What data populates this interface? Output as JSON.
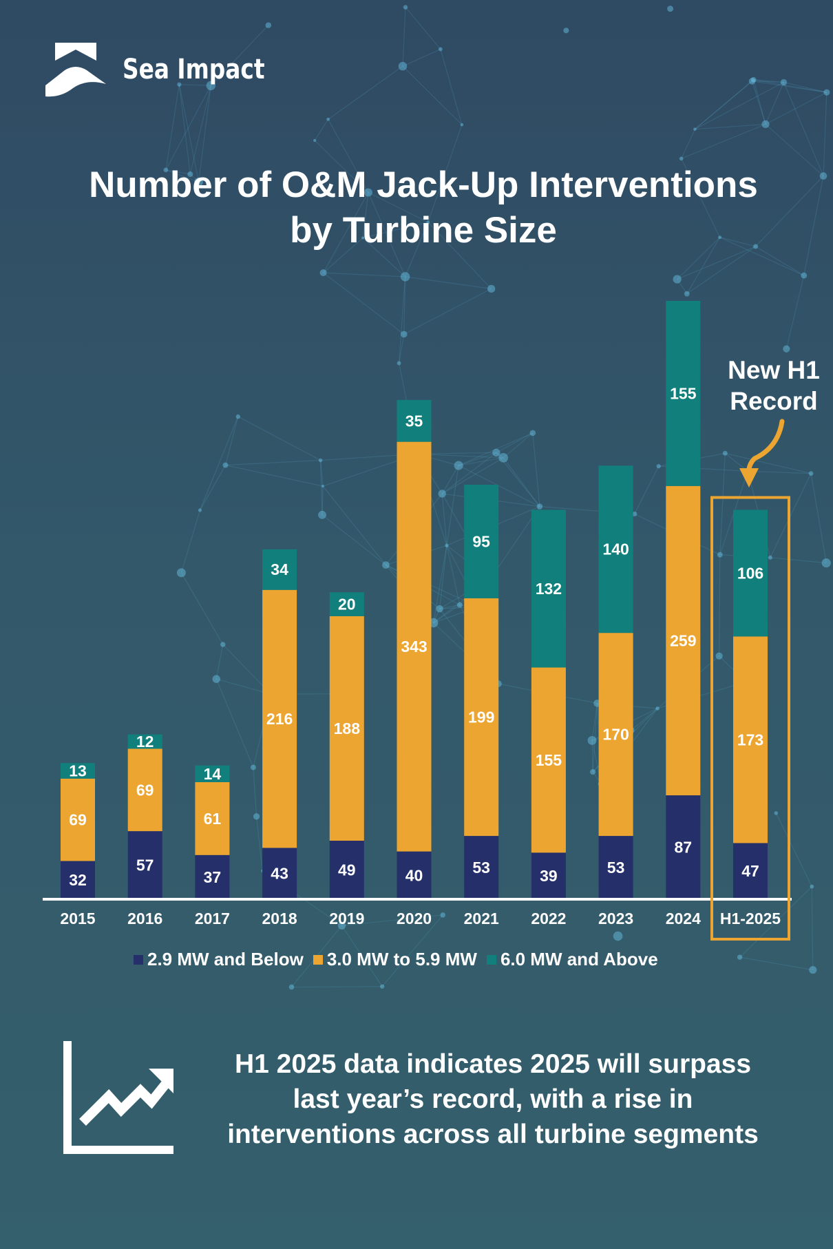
{
  "brand": {
    "name": "Sea Impact"
  },
  "colors": {
    "below_2_9": "#25306a",
    "mid_3_5_9": "#eca530",
    "above_6": "#11807c",
    "highlight": "#eca530",
    "axis": "#ffffff"
  },
  "chart_data": {
    "type": "bar",
    "stacked": true,
    "title": "Number of O&M Jack-Up Interventions by Turbine Size",
    "title_lines": [
      "Number of O&M Jack-Up Interventions",
      "by Turbine Size"
    ],
    "categories": [
      "2015",
      "2016",
      "2017",
      "2018",
      "2019",
      "2020",
      "2021",
      "2022",
      "2023",
      "2024",
      "H1-2025"
    ],
    "series": [
      {
        "name": "2.9 MW and Below",
        "values": [
          32,
          57,
          37,
          43,
          49,
          40,
          53,
          39,
          53,
          87,
          47
        ]
      },
      {
        "name": "3.0 MW to 5.9 MW",
        "values": [
          69,
          69,
          61,
          216,
          188,
          343,
          199,
          155,
          170,
          259,
          173
        ]
      },
      {
        "name": "6.0 MW and Above",
        "values": [
          13,
          12,
          14,
          34,
          20,
          35,
          95,
          132,
          140,
          155,
          106
        ]
      }
    ],
    "ylim": [
      0,
      505
    ],
    "grid": false,
    "legend_position": "bottom",
    "highlight_category": "H1-2025",
    "annotation": {
      "lines": [
        "New H1",
        "Record"
      ]
    }
  },
  "summary": {
    "icon": "trend-chart-icon",
    "lines": [
      "H1 2025 data indicates 2025 will surpass",
      "last year’s record, with a rise in",
      "interventions across all turbine segments"
    ]
  }
}
